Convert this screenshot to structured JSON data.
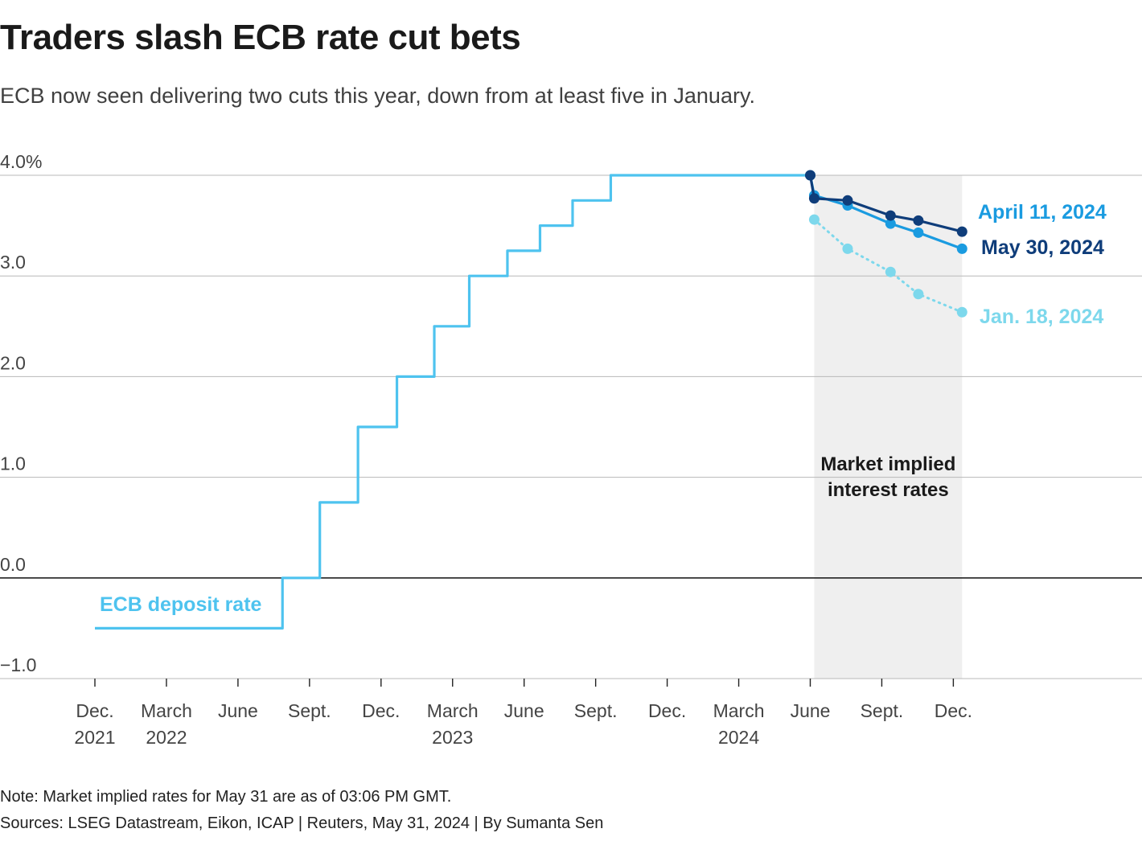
{
  "header": {
    "title": "Traders slash ECB rate cut bets",
    "subtitle": "ECB now seen delivering two cuts this year, down from at least five in January."
  },
  "footer": {
    "note": "Note: Market implied rates for May 31 are as of 03:06 PM GMT.",
    "sources": "Sources: LSEG Datastream, Eikon, ICAP | Reuters, May 31, 2024 | By Sumanta Sen"
  },
  "chart_data": {
    "type": "line",
    "x_unit": "month",
    "ylim": [
      -1.0,
      4.0
    ],
    "y_ticks": [
      {
        "value": 4.0,
        "label": "4.0%"
      },
      {
        "value": 3.0,
        "label": "3.0"
      },
      {
        "value": 2.0,
        "label": "2.0"
      },
      {
        "value": 1.0,
        "label": "1.0"
      },
      {
        "value": 0.0,
        "label": "0.0"
      },
      {
        "value": -1.0,
        "label": "−1.0"
      }
    ],
    "x_ticks": [
      {
        "x": "2021-12",
        "label": "Dec.",
        "sublabel": "2021"
      },
      {
        "x": "2022-03",
        "label": "March",
        "sublabel": "2022"
      },
      {
        "x": "2022-06",
        "label": "June",
        "sublabel": ""
      },
      {
        "x": "2022-09",
        "label": "Sept.",
        "sublabel": ""
      },
      {
        "x": "2022-12",
        "label": "Dec.",
        "sublabel": ""
      },
      {
        "x": "2023-03",
        "label": "March",
        "sublabel": "2023"
      },
      {
        "x": "2023-06",
        "label": "June",
        "sublabel": ""
      },
      {
        "x": "2023-09",
        "label": "Sept.",
        "sublabel": ""
      },
      {
        "x": "2023-12",
        "label": "Dec.",
        "sublabel": ""
      },
      {
        "x": "2024-03",
        "label": "March",
        "sublabel": "2024"
      },
      {
        "x": "2024-06",
        "label": "June",
        "sublabel": ""
      },
      {
        "x": "2024-09",
        "label": "Sept.",
        "sublabel": ""
      },
      {
        "x": "2024-12",
        "label": "Dec.",
        "sublabel": ""
      }
    ],
    "shaded_region": {
      "x_start": "2024-06-06",
      "x_end": "2024-12-12",
      "label_line1": "Market implied",
      "label_line2": "interest rates"
    },
    "series": [
      {
        "name": "ECB deposit rate",
        "color": "#4ec3ef",
        "style": "step",
        "points": [
          [
            "2021-12-01",
            -0.5
          ],
          [
            "2022-07-27",
            0.0
          ],
          [
            "2022-09-14",
            0.75
          ],
          [
            "2022-11-02",
            1.5
          ],
          [
            "2022-12-21",
            2.0
          ],
          [
            "2023-02-08",
            2.5
          ],
          [
            "2023-03-22",
            3.0
          ],
          [
            "2023-05-10",
            3.25
          ],
          [
            "2023-06-21",
            3.5
          ],
          [
            "2023-08-02",
            3.75
          ],
          [
            "2023-09-20",
            4.0
          ],
          [
            "2024-06-01",
            4.0
          ]
        ]
      },
      {
        "name": "April 11, 2024",
        "color": "#1a9be0",
        "style": "solid",
        "points": [
          [
            "2024-06-01",
            4.0
          ],
          [
            "2024-06-06",
            3.8
          ],
          [
            "2024-07-18",
            3.7
          ],
          [
            "2024-09-12",
            3.52
          ],
          [
            "2024-10-17",
            3.43
          ],
          [
            "2024-12-12",
            3.27
          ]
        ]
      },
      {
        "name": "May 30, 2024",
        "color": "#0f3d7a",
        "style": "solid",
        "points": [
          [
            "2024-06-01",
            4.0
          ],
          [
            "2024-06-06",
            3.77
          ],
          [
            "2024-07-18",
            3.75
          ],
          [
            "2024-09-12",
            3.6
          ],
          [
            "2024-10-17",
            3.55
          ],
          [
            "2024-12-12",
            3.44
          ]
        ]
      },
      {
        "name": "Jan. 18, 2024",
        "color": "#7dd8ec",
        "style": "dotted",
        "points": [
          [
            "2024-06-06",
            3.56
          ],
          [
            "2024-07-18",
            3.27
          ],
          [
            "2024-09-12",
            3.04
          ],
          [
            "2024-10-17",
            2.82
          ],
          [
            "2024-12-12",
            2.64
          ]
        ]
      }
    ]
  }
}
